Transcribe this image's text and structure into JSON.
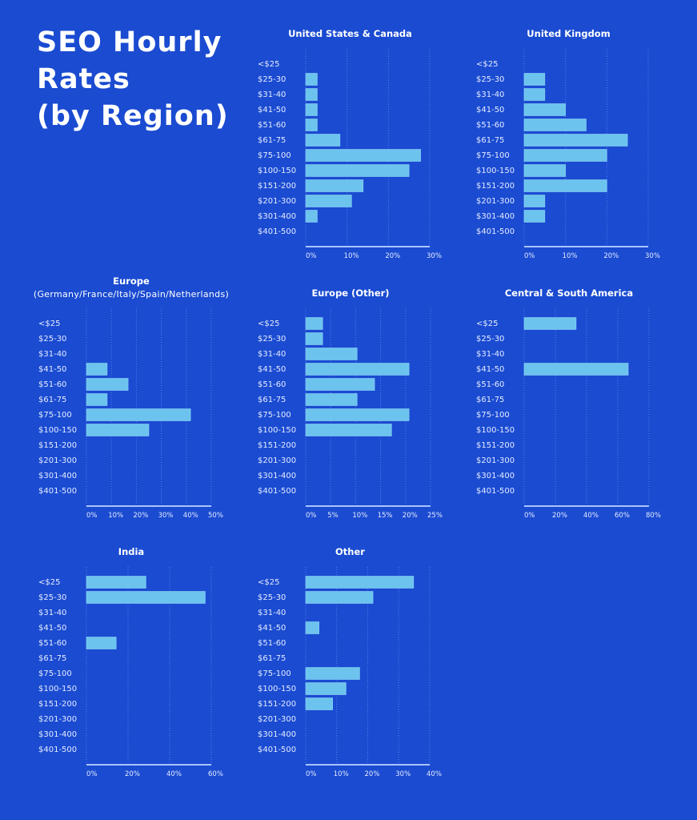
{
  "page": {
    "title_lines": [
      "SEO Hourly",
      "Rates",
      "(by Region)"
    ],
    "background_color": "#1a4bd1",
    "bar_color": "#6cc4ee"
  },
  "chart_data": [
    {
      "type": "bar",
      "orientation": "horizontal",
      "title": "United States & Canada",
      "subtitle": "",
      "categories": [
        "<$25",
        "$25-30",
        "$31-40",
        "$41-50",
        "$51-60",
        "$61-75",
        "$75-100",
        "$100-150",
        "$151-200",
        "$201-300",
        "$301-400",
        "$401-500"
      ],
      "values": [
        0,
        2.8,
        2.8,
        2.8,
        2.8,
        8.3,
        27.8,
        25.0,
        13.9,
        11.1,
        2.8,
        0
      ],
      "xlim": [
        0,
        30
      ],
      "xticks": [
        0,
        10,
        20,
        30
      ],
      "xtick_labels": [
        "0%",
        "10%",
        "20%",
        "30%"
      ],
      "grid": true
    },
    {
      "type": "bar",
      "orientation": "horizontal",
      "title": "United Kingdom",
      "subtitle": "",
      "categories": [
        "<$25",
        "$25-30",
        "$31-40",
        "$41-50",
        "$51-60",
        "$61-75",
        "$75-100",
        "$100-150",
        "$151-200",
        "$201-300",
        "$301-400",
        "$401-500"
      ],
      "values": [
        0,
        5,
        5,
        10,
        15,
        25,
        20,
        10,
        20,
        5,
        5,
        0
      ],
      "xlim": [
        0,
        30
      ],
      "xticks": [
        0,
        10,
        20,
        30
      ],
      "xtick_labels": [
        "0%",
        "10%",
        "20%",
        "30%"
      ],
      "grid": true
    },
    {
      "type": "bar",
      "orientation": "horizontal",
      "title": "Europe",
      "subtitle": "(Germany/France/Italy/Spain/Netherlands)",
      "categories": [
        "<$25",
        "$25-30",
        "$31-40",
        "$41-50",
        "$51-60",
        "$61-75",
        "$75-100",
        "$100-150",
        "$151-200",
        "$201-300",
        "$301-400",
        "$401-500"
      ],
      "values": [
        0,
        0,
        0,
        8.3,
        16.7,
        8.3,
        41.7,
        25.0,
        0,
        0,
        0,
        0
      ],
      "xlim": [
        0,
        50
      ],
      "xticks": [
        0,
        10,
        20,
        30,
        40,
        50
      ],
      "xtick_labels": [
        "0%",
        "10%",
        "20%",
        "30%",
        "40%",
        "50%"
      ],
      "grid": true
    },
    {
      "type": "bar",
      "orientation": "horizontal",
      "title": "Europe (Other)",
      "subtitle": "",
      "categories": [
        "<$25",
        "$25-30",
        "$31-40",
        "$41-50",
        "$51-60",
        "$61-75",
        "$75-100",
        "$100-150",
        "$151-200",
        "$201-300",
        "$301-400",
        "$401-500"
      ],
      "values": [
        3.4,
        3.4,
        10.3,
        20.7,
        13.8,
        10.3,
        20.7,
        17.2,
        0,
        0,
        0,
        0
      ],
      "xlim": [
        0,
        25
      ],
      "xticks": [
        0,
        5,
        10,
        15,
        20,
        25
      ],
      "xtick_labels": [
        "0%",
        "5%",
        "10%",
        "15%",
        "20%",
        "25%"
      ],
      "grid": true
    },
    {
      "type": "bar",
      "orientation": "horizontal",
      "title": "Central & South America",
      "subtitle": "",
      "categories": [
        "<$25",
        "$25-30",
        "$31-40",
        "$41-50",
        "$51-60",
        "$61-75",
        "$75-100",
        "$100-150",
        "$151-200",
        "$201-300",
        "$301-400",
        "$401-500"
      ],
      "values": [
        33.3,
        0,
        0,
        66.7,
        0,
        0,
        0,
        0,
        0,
        0,
        0,
        0
      ],
      "xlim": [
        0,
        80
      ],
      "xticks": [
        0,
        20,
        40,
        60,
        80
      ],
      "xtick_labels": [
        "0%",
        "20%",
        "40%",
        "60%",
        "80%"
      ],
      "grid": true
    },
    {
      "type": "bar",
      "orientation": "horizontal",
      "title": "India",
      "subtitle": "",
      "categories": [
        "<$25",
        "$25-30",
        "$31-40",
        "$41-50",
        "$51-60",
        "$61-75",
        "$75-100",
        "$100-150",
        "$151-200",
        "$201-300",
        "$301-400",
        "$401-500"
      ],
      "values": [
        28.6,
        57.1,
        0,
        0,
        14.3,
        0,
        0,
        0,
        0,
        0,
        0,
        0
      ],
      "xlim": [
        0,
        60
      ],
      "xticks": [
        0,
        20,
        40,
        60
      ],
      "xtick_labels": [
        "0%",
        "20%",
        "40%",
        "60%"
      ],
      "grid": true
    },
    {
      "type": "bar",
      "orientation": "horizontal",
      "title": "Other",
      "subtitle": "",
      "categories": [
        "<$25",
        "$25-30",
        "$31-40",
        "$41-50",
        "$51-60",
        "$61-75",
        "$75-100",
        "$100-150",
        "$151-200",
        "$201-300",
        "$301-400",
        "$401-500"
      ],
      "values": [
        34.8,
        21.7,
        0,
        4.3,
        0,
        0,
        17.4,
        13.0,
        8.7,
        0,
        0,
        0
      ],
      "xlim": [
        0,
        40
      ],
      "xticks": [
        0,
        10,
        20,
        30,
        40
      ],
      "xtick_labels": [
        "0%",
        "10%",
        "20%",
        "30%",
        "40%"
      ],
      "grid": true
    }
  ]
}
